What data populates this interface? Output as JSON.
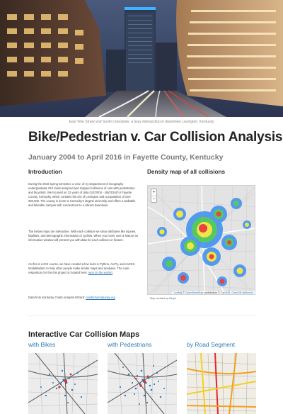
{
  "hero": {
    "caption": "East Vine Street and South Limestone, a busy intersection in downtown Lexington, Kentucky"
  },
  "header": {
    "title": "Bike/Pedestrian v. Car Collision Analysis",
    "subtitle": "January 2004 to April 2016 in Fayette County, Kentucky"
  },
  "intro": {
    "heading": "Introduction",
    "p1": "During the 2016 spring semester, a Univ. of Ky Department of Geography undergraduate GIS class analyzed and mapped collisions of cars with pedestrians and bicyclists. We focused on 12 years of data (1/2/2004 - 4/8/2016) for Fayette County, Kentucky, which contains the city of Lexington and a population of over 300,000. The county is home to Kentucky's largest university and offers a walkable and bikeable campus with connections to a vibrant downtown.",
    "p2": "The below maps are interactive. With each collision we show attributes like injuries, fatalities, and demographic information of cyclists. When you hover over a feature an information window will present you with data for each collision or feature.",
    "p3_text": "As this is a GIS course, we have created a few tools in Python, ArcPy, and ArcGIS ModelBuilder to help other people make similar maps and analyses. The code respository for the this project is located here: ",
    "p3_link": "repo (in the works)",
    "p4_text": "Data from Kentucky Crash Analysis Wizard: ",
    "p4_link": "crashinformationky.org"
  },
  "density": {
    "heading": "Density map of all collisions",
    "zoom_in": "+",
    "zoom_out": "−",
    "attribution_sep": "| © ",
    "attribution_osm": "OpenStreetMap",
    "attribution_mid": " contributors © ",
    "attribution_carto": "CartoDB",
    "attribution_comma": ", ",
    "attribution_cartoattr": "CartoDB attribution",
    "leaflet": "Leaflet",
    "credit_text": "Map created by ",
    "credit_link": "Bloyd"
  },
  "maps_section": {
    "heading": "Interactive Car Collision Maps",
    "links": [
      "with Bikes",
      "with Pedestrians",
      "by Road Segment"
    ]
  },
  "colors": {
    "link": "#2a7ab9",
    "heat_red": "#e8262a",
    "heat_yellow": "#f5e52a",
    "heat_green": "#3ec44a",
    "heat_blue": "#3a8ef0"
  }
}
